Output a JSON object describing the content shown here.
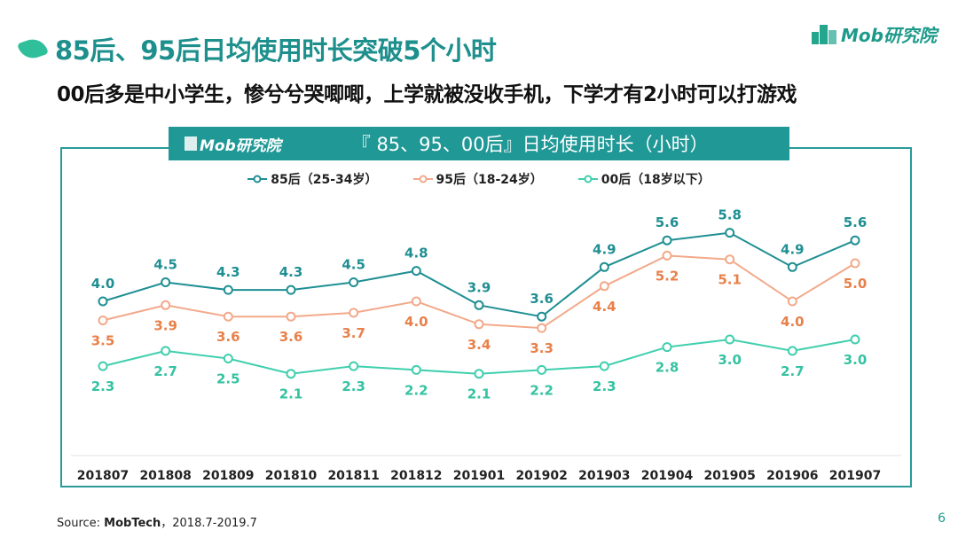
{
  "header": {
    "title": "85后、95后日均使用时长突破5个小时",
    "subtitle": "00后多是中小学生，惨兮兮哭唧唧，上学就被没收手机，下学才有2小时可以打游戏",
    "logo_text": "Mob研究院"
  },
  "chart_banner": {
    "logo_text": "Mob研究院",
    "title": "『 85、95、00后』日均使用时长（小时）"
  },
  "footer": {
    "source_label": "Source: ",
    "source_name": "MobTech",
    "source_range": "，2018.7-2019.7",
    "page_number": "6"
  },
  "chart_data": {
    "type": "line",
    "title": "『 85、95、00后』日均使用时长（小时）",
    "categories": [
      "201807",
      "201808",
      "201809",
      "201810",
      "201811",
      "201812",
      "201901",
      "201902",
      "201903",
      "201904",
      "201905",
      "201906",
      "201907"
    ],
    "series": [
      {
        "name": "85后（25-34岁）",
        "color": "#1f8f93",
        "label_color": "#1f8f93",
        "label_position": "above",
        "values": [
          4.0,
          4.5,
          4.3,
          4.3,
          4.5,
          4.8,
          3.9,
          3.6,
          4.9,
          5.6,
          5.8,
          4.9,
          5.6
        ]
      },
      {
        "name": "95后（18-24岁）",
        "color": "#f2a98a",
        "label_color": "#e8804a",
        "label_position": "below",
        "values": [
          3.5,
          3.9,
          3.6,
          3.6,
          3.7,
          4.0,
          3.4,
          3.3,
          4.4,
          5.2,
          5.1,
          4.0,
          5.0
        ]
      },
      {
        "name": "00后（18岁以下）",
        "color": "#3fcfae",
        "label_color": "#36c2a2",
        "label_position": "below",
        "values": [
          2.3,
          2.7,
          2.5,
          2.1,
          2.3,
          2.2,
          2.1,
          2.2,
          2.3,
          2.8,
          3.0,
          2.7,
          3.0
        ]
      }
    ],
    "legend": "top",
    "grid": false
  }
}
